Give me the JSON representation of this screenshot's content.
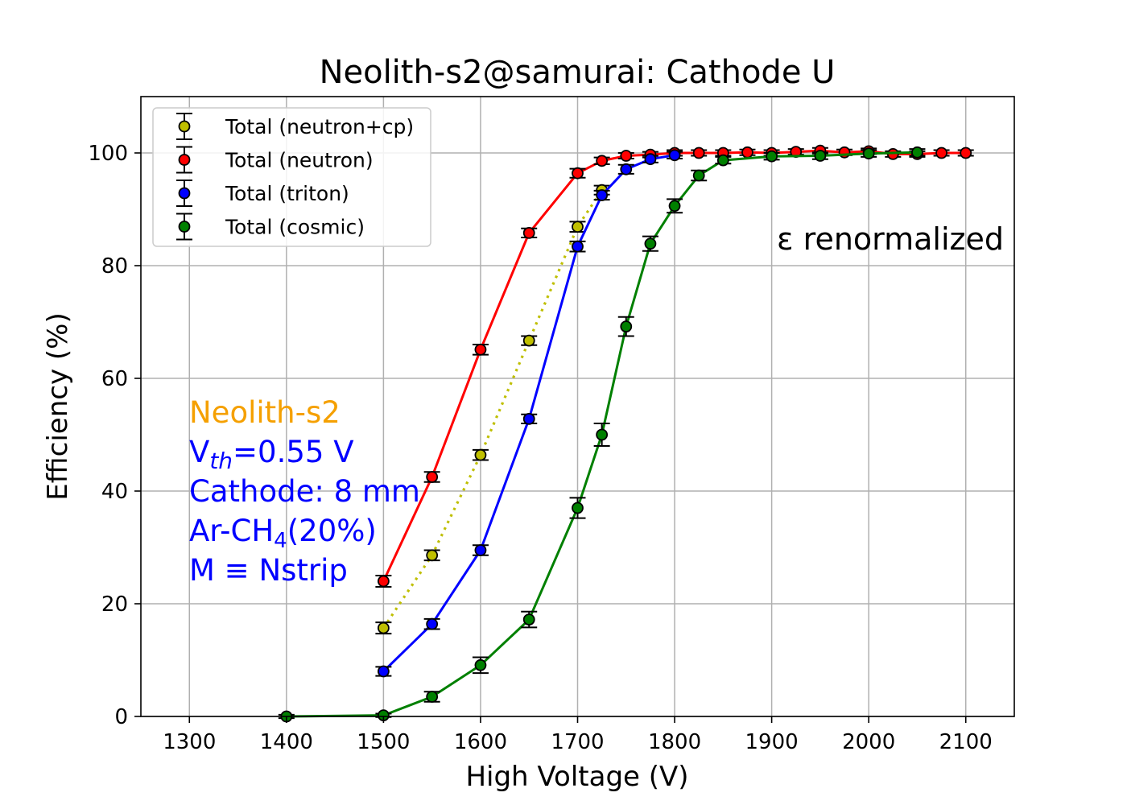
{
  "chart_data": {
    "type": "line",
    "title": "Neolith-s2@samurai: Cathode U",
    "xlabel": "High Voltage (V)",
    "ylabel": "Efficiency (%)",
    "xlim": [
      1250,
      2150
    ],
    "ylim": [
      0,
      110
    ],
    "xticks": [
      1300,
      1400,
      1500,
      1600,
      1700,
      1800,
      1900,
      2000,
      2100
    ],
    "yticks": [
      0,
      20,
      40,
      60,
      80,
      100
    ],
    "grid": true,
    "legend_position": "upper-left",
    "series": [
      {
        "name": "Total (neutron+cp)",
        "color": "#bfbf00",
        "line_style": "dotted",
        "x": [
          1500,
          1550,
          1600,
          1650,
          1700,
          1725
        ],
        "y": [
          15.7,
          28.6,
          46.4,
          66.7,
          86.9,
          93.4
        ],
        "err": [
          1.0,
          0.9,
          0.9,
          0.8,
          0.9,
          0.8
        ]
      },
      {
        "name": "Total (neutron)",
        "color": "#ff0000",
        "line_style": "solid",
        "x": [
          1500,
          1550,
          1600,
          1650,
          1700,
          1725,
          1750,
          1775,
          1800,
          1825,
          1850,
          1875,
          1900,
          1925,
          1950,
          1975,
          2000,
          2025,
          2050,
          2075,
          2100
        ],
        "y": [
          24.0,
          42.5,
          65.1,
          85.8,
          96.4,
          98.6,
          99.5,
          99.7,
          100.0,
          100.0,
          100.0,
          100.1,
          100.0,
          100.2,
          100.4,
          100.1,
          100.3,
          99.8,
          99.8,
          100.0,
          100.0
        ],
        "err": [
          1.0,
          0.9,
          0.9,
          0.8,
          0.8,
          0.6,
          0.5,
          0.5,
          0.5,
          0.5,
          0.5,
          0.5,
          0.5,
          0.5,
          0.5,
          0.5,
          0.5,
          0.5,
          0.5,
          0.5,
          0.5
        ]
      },
      {
        "name": "Total (triton)",
        "color": "#0000ff",
        "line_style": "solid",
        "x": [
          1500,
          1550,
          1600,
          1650,
          1700,
          1725,
          1750,
          1775,
          1800
        ],
        "y": [
          8.0,
          16.4,
          29.5,
          52.8,
          83.4,
          92.5,
          97.1,
          98.9,
          99.6
        ],
        "err": [
          0.8,
          0.9,
          0.9,
          0.8,
          0.9,
          0.8,
          0.8,
          0.6,
          0.6
        ]
      },
      {
        "name": "Total (cosmic)",
        "color": "#008000",
        "line_style": "solid",
        "x": [
          1400,
          1500,
          1550,
          1600,
          1650,
          1700,
          1725,
          1750,
          1775,
          1800,
          1825,
          1850,
          1900,
          1950,
          2000,
          2050
        ],
        "y": [
          0.0,
          0.2,
          3.5,
          9.1,
          17.2,
          37.0,
          50.0,
          69.2,
          83.9,
          90.6,
          96.0,
          98.7,
          99.4,
          99.5,
          99.9,
          100.1
        ],
        "err": [
          0.3,
          0.3,
          0.9,
          1.4,
          1.4,
          1.8,
          2.0,
          1.7,
          1.3,
          1.2,
          0.9,
          0.6,
          0.6,
          0.6,
          0.6,
          0.6
        ]
      }
    ],
    "annotations": {
      "renorm": "ε renormalized",
      "detector": "Neolith-s2",
      "vth_prefix": "V",
      "vth_sub": "th",
      "vth_rest": "=0.55 V",
      "cathode": "Cathode: 8 mm",
      "gas_prefix": "Ar-CH",
      "gas_sub": "4",
      "gas_rest": "(20%)",
      "mult": "M ≡ Nstrip",
      "detector_color": "#f5a000",
      "info_color": "#0000ff"
    }
  }
}
